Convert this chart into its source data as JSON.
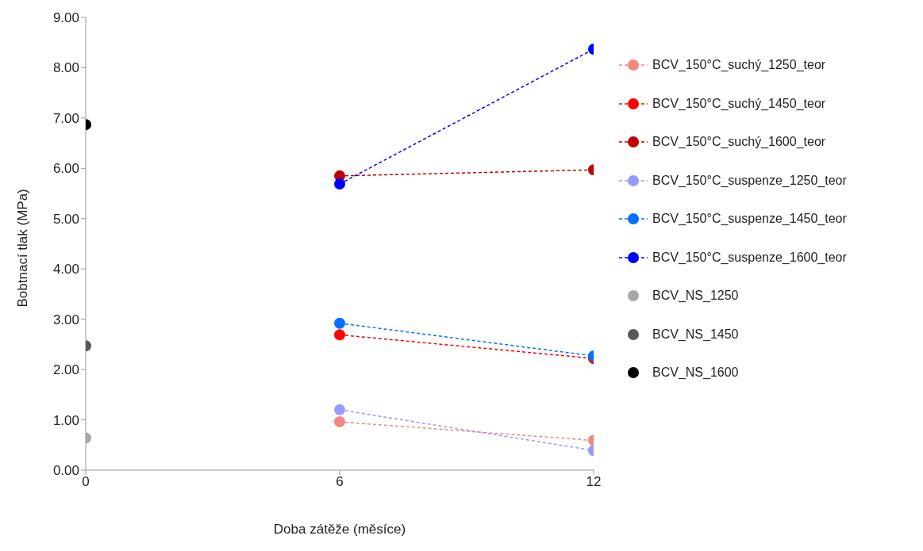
{
  "chart_data": {
    "type": "line",
    "xlabel": "Doba zátěže (měsíce)",
    "ylabel": "Bobtnací tlak (MPa)",
    "xlim": [
      0,
      12
    ],
    "xticks": [
      0,
      6,
      12
    ],
    "ylim": [
      0,
      9
    ],
    "yticks": [
      {
        "value": 0,
        "label": "0.00"
      },
      {
        "value": 1,
        "label": "1.00"
      },
      {
        "value": 2,
        "label": "2.00"
      },
      {
        "value": 3,
        "label": "3.00"
      },
      {
        "value": 4,
        "label": "4.00"
      },
      {
        "value": 5,
        "label": "5.00"
      },
      {
        "value": 6,
        "label": "6.00"
      },
      {
        "value": 7,
        "label": "7.00"
      },
      {
        "value": 8,
        "label": "8.00"
      },
      {
        "value": 9,
        "label": "9.00"
      }
    ],
    "grid": false,
    "legend": "right",
    "marker": "circle",
    "line_style": "dashed",
    "series": [
      {
        "name": "BCV_150°C_suchý_1250_teor",
        "color": "#f4877f",
        "x": [
          6,
          12
        ],
        "values": [
          0.96,
          0.59
        ]
      },
      {
        "name": "BCV_150°C_suchý_1450_teor",
        "color": "#ff0000",
        "x": [
          6,
          12
        ],
        "values": [
          2.69,
          2.22
        ]
      },
      {
        "name": "BCV_150°C_suchý_1600_teor",
        "color": "#c00000",
        "x": [
          6,
          12
        ],
        "values": [
          5.85,
          5.97
        ]
      },
      {
        "name": "BCV_150°C_suspenze_1250_teor",
        "color": "#9999ff",
        "x": [
          6,
          12
        ],
        "values": [
          1.2,
          0.39
        ]
      },
      {
        "name": "BCV_150°C_suspenze_1450_teor",
        "color": "#0070ff",
        "x": [
          6,
          12
        ],
        "values": [
          2.92,
          2.27
        ]
      },
      {
        "name": "BCV_150°C_suspenze_1600_teor",
        "color": "#0000ff",
        "x": [
          6,
          12
        ],
        "values": [
          5.69,
          8.37
        ]
      },
      {
        "name": "BCV_NS_1250",
        "color": "#a6a6a6",
        "type": "scatter",
        "x": [
          0
        ],
        "values": [
          0.64
        ]
      },
      {
        "name": "BCV_NS_1450",
        "color": "#595959",
        "type": "scatter",
        "x": [
          0
        ],
        "values": [
          2.47
        ]
      },
      {
        "name": "BCV_NS_1600",
        "color": "#000000",
        "type": "scatter",
        "x": [
          0
        ],
        "values": [
          6.87
        ]
      }
    ]
  }
}
